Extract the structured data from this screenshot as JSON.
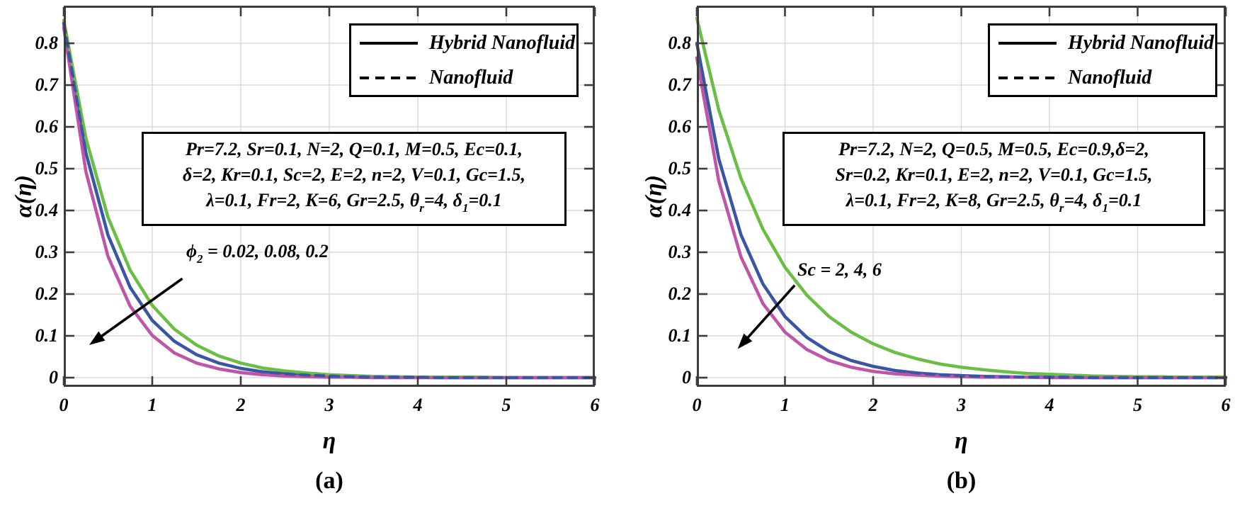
{
  "legend": {
    "items": [
      {
        "label": "Hybrid Nanofluid",
        "style": "solid"
      },
      {
        "label": "Nanofluid",
        "style": "dashed"
      }
    ]
  },
  "panels": [
    {
      "caption": "(a)",
      "xlabel": "η",
      "ylabel": "α(η)",
      "info_lines": [
        [
          {
            "t": "Pr=7.2, Sr=0.1, N=2, Q=0.1, M=0.5, Ec=0.1,"
          }
        ],
        [
          {
            "t": "δ=2, Kr=0.1, Sc=2, E=2, n=2, V=0.1, Gc=1.5,"
          }
        ],
        [
          {
            "t": "λ=0.1, Fr=2, K=6, Gr=2.5, θ"
          },
          {
            "s": "r"
          },
          {
            "t": "=4, δ"
          },
          {
            "s": "1"
          },
          {
            "t": "=0.1"
          }
        ]
      ],
      "annotation": [
        {
          "t": "ϕ"
        },
        {
          "s": "2"
        },
        {
          "t": " = 0.02, 0.08, 0.2"
        }
      ]
    },
    {
      "caption": "(b)",
      "xlabel": "η",
      "ylabel": "α(η)",
      "info_lines": [
        [
          {
            "t": "Pr=7.2, N=2, Q=0.5, M=0.5, Ec=0.9,δ=2,"
          }
        ],
        [
          {
            "t": "Sr=0.2, Kr=0.1, E=2, n=2, V=0.1, Gc=1.5,"
          }
        ],
        [
          {
            "t": "λ=0.1, Fr=2, K=8, Gr=2.5, θ"
          },
          {
            "s": "r"
          },
          {
            "t": "=4, δ"
          },
          {
            "s": "1"
          },
          {
            "t": "=0.1"
          }
        ]
      ],
      "annotation": [
        {
          "t": "Sc = 2, 4, 6"
        }
      ]
    }
  ],
  "chart_data": [
    {
      "id": "a",
      "type": "line",
      "xlabel": "η",
      "ylabel": "α(η)",
      "xlim": [
        0,
        6
      ],
      "ylim": [
        -0.022,
        0.89
      ],
      "x_ticks": [
        0,
        1,
        2,
        3,
        4,
        5,
        6
      ],
      "y_ticks": [
        0,
        0.1,
        0.2,
        0.3,
        0.4,
        0.5,
        0.6,
        0.7,
        0.8
      ],
      "grid": true,
      "legend_entries": [
        "Hybrid Nanofluid",
        "Nanofluid"
      ],
      "annotation_text": "ϕ2 = 0.02, 0.08, 0.2",
      "arrow": {
        "from": [
          1.34,
          0.237
        ],
        "to": [
          0.32,
          0.083
        ]
      },
      "x": [
        0,
        0.25,
        0.5,
        0.75,
        1,
        1.25,
        1.5,
        1.75,
        2,
        2.25,
        2.5,
        2.75,
        3,
        3.25,
        3.5,
        3.75,
        4,
        4.25,
        4.5,
        4.75,
        5,
        5.25,
        5.5,
        5.75,
        6
      ],
      "series": [
        {
          "name": "Hybrid Nanofluid ϕ2=0.02",
          "color": "#6bbe45",
          "style": "solid",
          "values": [
            0.855,
            0.573,
            0.384,
            0.257,
            0.173,
            0.116,
            0.078,
            0.052,
            0.035,
            0.023,
            0.016,
            0.011,
            0.007,
            0.005,
            0.003,
            0.002,
            0.001,
            0.001,
            0.001,
            0.001,
            0.0,
            0.0,
            0.0,
            0.0,
            0.0
          ]
        },
        {
          "name": "Hybrid Nanofluid ϕ2=0.08",
          "color": "#3b55a5",
          "style": "solid",
          "values": [
            0.848,
            0.538,
            0.341,
            0.216,
            0.137,
            0.087,
            0.055,
            0.035,
            0.022,
            0.014,
            0.009,
            0.006,
            0.004,
            0.002,
            0.001,
            0.001,
            0.001,
            0.0,
            0.0,
            0.0,
            0.0,
            0.0,
            0.0,
            0.0,
            0.0
          ]
        },
        {
          "name": "Hybrid Nanofluid ϕ2=0.2",
          "color": "#c055a8",
          "style": "solid",
          "values": [
            0.838,
            0.493,
            0.29,
            0.171,
            0.101,
            0.059,
            0.035,
            0.021,
            0.012,
            0.007,
            0.004,
            0.002,
            0.001,
            0.001,
            0.0,
            0.0,
            0.0,
            0.0,
            0.0,
            0.0,
            0.0,
            0.0,
            0.0,
            0.0,
            0.0
          ]
        },
        {
          "name": "Nanofluid ϕ2=0.02",
          "color": "#6bbe45",
          "style": "dashed",
          "values": [
            0.855,
            0.573,
            0.384,
            0.257,
            0.173,
            0.116,
            0.078,
            0.052,
            0.035,
            0.023,
            0.016,
            0.011,
            0.007,
            0.005,
            0.003,
            0.002,
            0.001,
            0.001,
            0.001,
            0.001,
            0.0,
            0.0,
            0.0,
            0.0,
            0.0
          ]
        },
        {
          "name": "Nanofluid ϕ2=0.2",
          "color": "#c055a8",
          "style": "dashed",
          "values": [
            0.838,
            0.493,
            0.29,
            0.171,
            0.101,
            0.059,
            0.035,
            0.021,
            0.012,
            0.007,
            0.004,
            0.002,
            0.001,
            0.001,
            0.0,
            0.0,
            0.0,
            0.0,
            0.0,
            0.0,
            0.0,
            0.0,
            0.0,
            0.0,
            0.0
          ]
        },
        {
          "name": "Nanofluid ϕ2=0.08",
          "color": "#3b55a5",
          "style": "dashed",
          "values": [
            0.848,
            0.538,
            0.341,
            0.216,
            0.137,
            0.087,
            0.055,
            0.035,
            0.022,
            0.014,
            0.009,
            0.006,
            0.004,
            0.002,
            0.001,
            0.001,
            0.001,
            0.0,
            0.0,
            0.0,
            0.0,
            0.0,
            0.0,
            0.0,
            0.0
          ]
        }
      ]
    },
    {
      "id": "b",
      "type": "line",
      "xlabel": "η",
      "ylabel": "α(η)",
      "xlim": [
        0,
        6
      ],
      "ylim": [
        -0.022,
        0.89
      ],
      "x_ticks": [
        0,
        1,
        2,
        3,
        4,
        5,
        6
      ],
      "y_ticks": [
        0,
        0.1,
        0.2,
        0.3,
        0.4,
        0.5,
        0.6,
        0.7,
        0.8
      ],
      "grid": true,
      "legend_entries": [
        "Hybrid Nanofluid",
        "Nanofluid"
      ],
      "annotation_text": "Sc = 2, 4, 6",
      "arrow": {
        "from": [
          1.11,
          0.221
        ],
        "to": [
          0.49,
          0.075
        ]
      },
      "x": [
        0,
        0.25,
        0.5,
        0.75,
        1,
        1.25,
        1.5,
        1.75,
        2,
        2.25,
        2.5,
        2.75,
        3,
        3.25,
        3.5,
        3.75,
        4,
        4.25,
        4.5,
        4.75,
        5,
        5.25,
        5.5,
        5.75,
        6
      ],
      "series": [
        {
          "name": "Hybrid Nanofluid Sc=2",
          "color": "#6bbe45",
          "style": "solid",
          "values": [
            0.86,
            0.64,
            0.477,
            0.355,
            0.264,
            0.197,
            0.146,
            0.109,
            0.081,
            0.06,
            0.045,
            0.033,
            0.025,
            0.019,
            0.014,
            0.01,
            0.008,
            0.006,
            0.004,
            0.003,
            0.002,
            0.002,
            0.001,
            0.001,
            0.001
          ]
        },
        {
          "name": "Hybrid Nanofluid Sc=4",
          "color": "#3b55a5",
          "style": "solid",
          "values": [
            0.8,
            0.523,
            0.342,
            0.224,
            0.146,
            0.096,
            0.062,
            0.041,
            0.027,
            0.017,
            0.011,
            0.007,
            0.005,
            0.003,
            0.002,
            0.001,
            0.001,
            0.001,
            0.0,
            0.0,
            0.0,
            0.0,
            0.0,
            0.0,
            0.0
          ]
        },
        {
          "name": "Hybrid Nanofluid Sc=6",
          "color": "#c055a8",
          "style": "solid",
          "values": [
            0.765,
            0.47,
            0.289,
            0.177,
            0.109,
            0.067,
            0.041,
            0.025,
            0.015,
            0.009,
            0.006,
            0.004,
            0.002,
            0.001,
            0.001,
            0.001,
            0.0,
            0.0,
            0.0,
            0.0,
            0.0,
            0.0,
            0.0,
            0.0,
            0.0
          ]
        },
        {
          "name": "Nanofluid Sc=2",
          "color": "#6bbe45",
          "style": "dashed",
          "values": [
            0.86,
            0.64,
            0.477,
            0.355,
            0.264,
            0.197,
            0.146,
            0.109,
            0.081,
            0.06,
            0.045,
            0.033,
            0.025,
            0.019,
            0.014,
            0.01,
            0.008,
            0.006,
            0.004,
            0.003,
            0.002,
            0.002,
            0.001,
            0.001,
            0.001
          ]
        },
        {
          "name": "Nanofluid Sc=6",
          "color": "#c055a8",
          "style": "dashed",
          "values": [
            0.765,
            0.47,
            0.289,
            0.177,
            0.109,
            0.067,
            0.041,
            0.025,
            0.015,
            0.009,
            0.006,
            0.004,
            0.002,
            0.001,
            0.001,
            0.001,
            0.0,
            0.0,
            0.0,
            0.0,
            0.0,
            0.0,
            0.0,
            0.0,
            0.0
          ]
        },
        {
          "name": "Nanofluid Sc=4",
          "color": "#3b55a5",
          "style": "dashed",
          "values": [
            0.8,
            0.523,
            0.342,
            0.224,
            0.146,
            0.096,
            0.062,
            0.041,
            0.027,
            0.017,
            0.011,
            0.007,
            0.005,
            0.003,
            0.002,
            0.001,
            0.001,
            0.001,
            0.0,
            0.0,
            0.0,
            0.0,
            0.0,
            0.0,
            0.0
          ]
        }
      ]
    }
  ]
}
